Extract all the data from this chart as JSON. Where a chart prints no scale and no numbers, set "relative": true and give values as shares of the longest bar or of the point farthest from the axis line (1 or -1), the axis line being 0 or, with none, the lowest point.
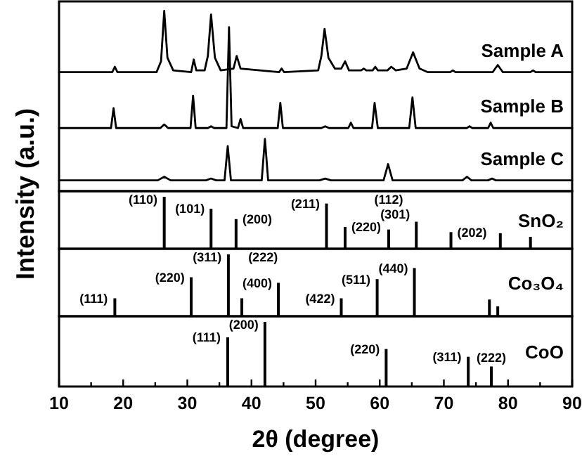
{
  "chart_data": [
    {
      "type": "line",
      "relative": true,
      "tick_labels": false,
      "xlim": [
        10,
        90
      ],
      "ylabel": "Intensity (a.u.)",
      "series": [
        {
          "name": "Sample A",
          "color": "#000000",
          "x": [
            10,
            18.3,
            18.7,
            19.1,
            25.2,
            25.9,
            26.4,
            26.9,
            27.8,
            30.6,
            31.0,
            31.4,
            32.7,
            33.2,
            33.7,
            34.3,
            35.2,
            37.2,
            37.7,
            38.3,
            44.3,
            44.7,
            45.1,
            50.4,
            50.9,
            51.4,
            52.0,
            53.0,
            54.0,
            54.6,
            55.2,
            57.1,
            57.5,
            57.9,
            58.9,
            59.3,
            59.7,
            61.2,
            61.8,
            62.5,
            64.2,
            65.2,
            66.2,
            67.5,
            71.0,
            71.4,
            71.8,
            77.6,
            78.4,
            79.2,
            83.5,
            83.9,
            84.3,
            90
          ],
          "values": [
            0.66,
            0.66,
            0.69,
            0.66,
            0.66,
            0.72,
            1.0,
            0.74,
            0.67,
            0.66,
            0.73,
            0.67,
            0.67,
            0.75,
            0.98,
            0.74,
            0.67,
            0.68,
            0.75,
            0.68,
            0.66,
            0.68,
            0.66,
            0.67,
            0.75,
            0.9,
            0.74,
            0.68,
            0.68,
            0.72,
            0.67,
            0.67,
            0.68,
            0.67,
            0.67,
            0.69,
            0.67,
            0.67,
            0.69,
            0.67,
            0.68,
            0.77,
            0.68,
            0.66,
            0.66,
            0.67,
            0.66,
            0.66,
            0.7,
            0.66,
            0.66,
            0.67,
            0.66,
            0.66
          ]
        },
        {
          "name": "Sample B",
          "color": "#000000",
          "x": [
            10,
            18.1,
            18.5,
            18.9,
            25.8,
            26.4,
            27.0,
            30.5,
            30.9,
            31.3,
            33.2,
            33.7,
            34.2,
            36.1,
            36.5,
            36.9,
            37.9,
            38.3,
            38.7,
            44.1,
            44.5,
            44.9,
            50.9,
            51.5,
            52.1,
            55.1,
            55.5,
            55.9,
            58.8,
            59.2,
            59.7,
            64.6,
            65.1,
            65.6,
            73.6,
            74.0,
            74.4,
            76.9,
            77.3,
            77.7,
            90
          ],
          "values": [
            0.35,
            0.35,
            0.46,
            0.35,
            0.35,
            0.37,
            0.35,
            0.35,
            0.53,
            0.35,
            0.35,
            0.36,
            0.35,
            0.35,
            0.91,
            0.36,
            0.35,
            0.4,
            0.35,
            0.35,
            0.49,
            0.35,
            0.35,
            0.36,
            0.35,
            0.35,
            0.38,
            0.35,
            0.35,
            0.49,
            0.35,
            0.35,
            0.52,
            0.35,
            0.35,
            0.36,
            0.35,
            0.35,
            0.38,
            0.35,
            0.35
          ]
        },
        {
          "name": "Sample C",
          "color": "#000000",
          "x": [
            10,
            25.4,
            26.4,
            27.4,
            32.9,
            33.7,
            34.5,
            35.8,
            36.3,
            36.8,
            41.6,
            42.1,
            42.6,
            50.6,
            51.5,
            52.4,
            60.6,
            61.3,
            62.0,
            72.9,
            73.6,
            74.3,
            76.9,
            77.5,
            78.1,
            90
          ],
          "values": [
            0.06,
            0.06,
            0.08,
            0.06,
            0.06,
            0.07,
            0.06,
            0.06,
            0.25,
            0.06,
            0.06,
            0.29,
            0.06,
            0.06,
            0.07,
            0.06,
            0.06,
            0.15,
            0.06,
            0.06,
            0.08,
            0.06,
            0.06,
            0.07,
            0.06,
            0.06
          ]
        }
      ]
    },
    {
      "type": "bar",
      "relative": true,
      "tick_labels": false,
      "xlim": [
        10,
        90
      ],
      "series": [
        {
          "name": "SnO₂",
          "color": "#000000",
          "x": [
            26.4,
            33.7,
            37.6,
            51.7,
            54.6,
            61.4,
            65.7,
            71.1,
            78.8,
            83.5
          ],
          "values": [
            1,
            0.77,
            0.57,
            0.87,
            0.42,
            0.37,
            0.52,
            0.32,
            0.3,
            0.23
          ]
        }
      ],
      "annotations": [
        {
          "text": "(110)",
          "x": 26.4,
          "y": 1
        },
        {
          "text": "(101)",
          "x": 33.7,
          "y": 0.77
        },
        {
          "text": "(200)",
          "x": 37.6,
          "y": 0.57
        },
        {
          "text": "(211)",
          "x": 51.7,
          "y": 0.87
        },
        {
          "text": "(220)",
          "x": 54.6,
          "y": 0.42
        },
        {
          "text": "(112)",
          "x": 61.4,
          "y": 0.37
        },
        {
          "text": "(301)",
          "x": 65.7,
          "y": 0.52
        },
        {
          "text": "(202)",
          "x": 71.1,
          "y": 0.32
        }
      ]
    },
    {
      "type": "bar",
      "relative": true,
      "tick_labels": false,
      "xlim": [
        10,
        90
      ],
      "series": [
        {
          "name": "Co₃O₄",
          "color": "#000000",
          "x": [
            18.7,
            30.6,
            36.4,
            38.5,
            44.2,
            54.0,
            59.6,
            65.4,
            77.1,
            78.4
          ],
          "values": [
            0.29,
            0.63,
            1,
            0.29,
            0.54,
            0.29,
            0.6,
            0.78,
            0.27,
            0.16
          ]
        }
      ],
      "annotations": [
        {
          "text": "(111)",
          "x": 18.7,
          "y": 0.29
        },
        {
          "text": "(220)",
          "x": 30.6,
          "y": 0.63
        },
        {
          "text": "(311)",
          "x": 36.4,
          "y": 1
        },
        {
          "text": "(222)",
          "x": 38.5,
          "y": 0.29
        },
        {
          "text": "(400)",
          "x": 44.2,
          "y": 0.54
        },
        {
          "text": "(422)",
          "x": 54.0,
          "y": 0.29
        },
        {
          "text": "(511)",
          "x": 59.6,
          "y": 0.6
        },
        {
          "text": "(440)",
          "x": 65.4,
          "y": 0.78
        }
      ]
    },
    {
      "type": "bar",
      "relative": true,
      "tick_labels": "x",
      "xlim": [
        10,
        90
      ],
      "xlabel": "2θ (degree)",
      "xticks": [
        10,
        {
          "value": 15,
          "label": null
        },
        20,
        {
          "value": 25,
          "label": null
        },
        30,
        {
          "value": 35,
          "label": null
        },
        40,
        {
          "value": 45,
          "label": null
        },
        50,
        {
          "value": 55,
          "label": null
        },
        60,
        {
          "value": 65,
          "label": null
        },
        70,
        {
          "value": 75,
          "label": null
        },
        80,
        {
          "value": 85,
          "label": null
        },
        90
      ],
      "series": [
        {
          "name": "CoO",
          "color": "#000000",
          "x": [
            36.3,
            42.1,
            61.0,
            73.8,
            77.4
          ],
          "values": [
            0.76,
            1,
            0.58,
            0.46,
            0.31
          ]
        }
      ],
      "annotations": [
        {
          "text": "(111)",
          "x": 36.3,
          "y": 0.76
        },
        {
          "text": "(200)",
          "x": 42.1,
          "y": 1
        },
        {
          "text": "(220)",
          "x": 61.0,
          "y": 0.58
        },
        {
          "text": "(311)",
          "x": 73.8,
          "y": 0.46
        },
        {
          "text": "(222)",
          "x": 77.4,
          "y": 0.31
        }
      ]
    }
  ]
}
